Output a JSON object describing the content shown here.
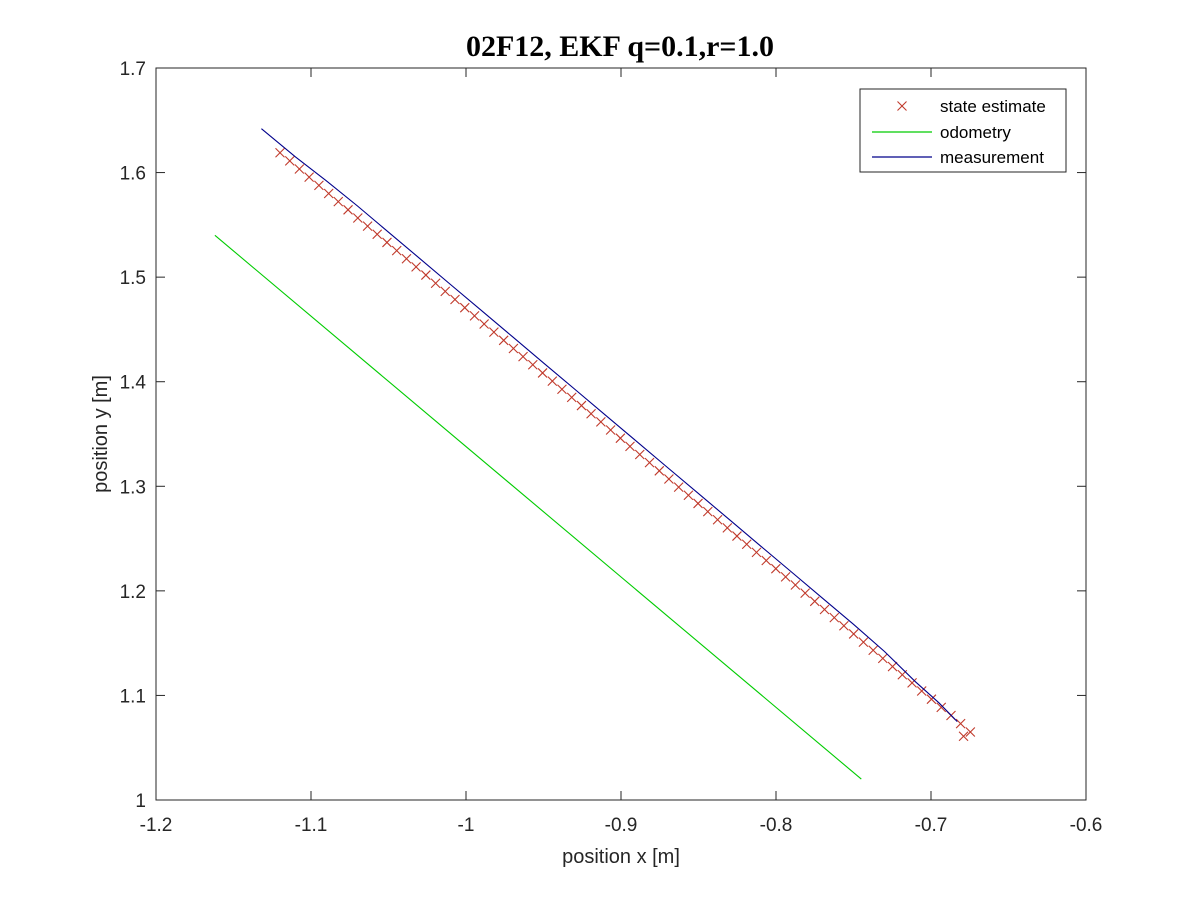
{
  "chart_data": {
    "type": "line",
    "title": "02F12, EKF q=0.1,r=1.0",
    "xlabel": "position x [m]",
    "ylabel": "position y [m]",
    "xlim": [
      -1.2,
      -0.6
    ],
    "ylim": [
      1.0,
      1.7
    ],
    "xticks": [
      -1.2,
      -1.1,
      -1.0,
      -0.9,
      -0.8,
      -0.7,
      -0.6
    ],
    "xtick_labels": [
      "-1.2",
      "-1.1",
      "-1",
      "-0.9",
      "-0.8",
      "-0.7",
      "-0.6"
    ],
    "yticks": [
      1.0,
      1.1,
      1.2,
      1.3,
      1.4,
      1.5,
      1.6,
      1.7
    ],
    "ytick_labels": [
      "1",
      "1.1",
      "1.2",
      "1.3",
      "1.4",
      "1.5",
      "1.6",
      "1.7"
    ],
    "grid": false,
    "legend_position": "top-right",
    "series": [
      {
        "name": "state estimate",
        "style": "marker-x",
        "color": "#c0392b",
        "points": [
          [
            -1.12,
            1.619
          ],
          [
            -1.1137,
            1.6112
          ],
          [
            -1.1075,
            1.6034
          ],
          [
            -1.1012,
            1.5956
          ],
          [
            -1.0949,
            1.5878
          ],
          [
            -1.0886,
            1.58
          ],
          [
            -1.0824,
            1.5722
          ],
          [
            -1.0761,
            1.5644
          ],
          [
            -1.0698,
            1.5566
          ],
          [
            -1.0635,
            1.5488
          ],
          [
            -1.0573,
            1.541
          ],
          [
            -1.051,
            1.5332
          ],
          [
            -1.0447,
            1.5254
          ],
          [
            -1.0384,
            1.5176
          ],
          [
            -1.0322,
            1.5098
          ],
          [
            -1.0259,
            1.502
          ],
          [
            -1.0196,
            1.4942
          ],
          [
            -1.0134,
            1.4864
          ],
          [
            -1.0071,
            1.4786
          ],
          [
            -1.0008,
            1.4708
          ],
          [
            -0.9945,
            1.463
          ],
          [
            -0.9883,
            1.4552
          ],
          [
            -0.982,
            1.4474
          ],
          [
            -0.9757,
            1.4396
          ],
          [
            -0.9694,
            1.4318
          ],
          [
            -0.9632,
            1.424
          ],
          [
            -0.9569,
            1.4162
          ],
          [
            -0.9506,
            1.4084
          ],
          [
            -0.9443,
            1.4006
          ],
          [
            -0.9381,
            1.3928
          ],
          [
            -0.9318,
            1.385
          ],
          [
            -0.9255,
            1.3772
          ],
          [
            -0.9193,
            1.3694
          ],
          [
            -0.913,
            1.3616
          ],
          [
            -0.9067,
            1.3538
          ],
          [
            -0.9004,
            1.346
          ],
          [
            -0.8942,
            1.3382
          ],
          [
            -0.8879,
            1.3304
          ],
          [
            -0.8816,
            1.3226
          ],
          [
            -0.8753,
            1.3148
          ],
          [
            -0.8691,
            1.307
          ],
          [
            -0.8628,
            1.2992
          ],
          [
            -0.8565,
            1.2914
          ],
          [
            -0.8503,
            1.2836
          ],
          [
            -0.844,
            1.2758
          ],
          [
            -0.8377,
            1.268
          ],
          [
            -0.8314,
            1.2602
          ],
          [
            -0.8252,
            1.2524
          ],
          [
            -0.8189,
            1.2446
          ],
          [
            -0.8126,
            1.2368
          ],
          [
            -0.8063,
            1.229
          ],
          [
            -0.8001,
            1.2212
          ],
          [
            -0.7938,
            1.2134
          ],
          [
            -0.7875,
            1.2056
          ],
          [
            -0.7812,
            1.1978
          ],
          [
            -0.775,
            1.19
          ],
          [
            -0.7687,
            1.1822
          ],
          [
            -0.7624,
            1.1744
          ],
          [
            -0.7562,
            1.1666
          ],
          [
            -0.7499,
            1.1588
          ],
          [
            -0.7436,
            1.151
          ],
          [
            -0.7373,
            1.1432
          ],
          [
            -0.7311,
            1.1354
          ],
          [
            -0.7248,
            1.1276
          ],
          [
            -0.7185,
            1.1198
          ],
          [
            -0.7122,
            1.112
          ],
          [
            -0.706,
            1.1042
          ],
          [
            -0.6997,
            1.0964
          ],
          [
            -0.6934,
            1.0886
          ],
          [
            -0.6871,
            1.0808
          ],
          [
            -0.6809,
            1.073
          ],
          [
            -0.6746,
            1.065
          ],
          [
            -0.679,
            1.061
          ]
        ]
      },
      {
        "name": "odometry",
        "style": "line",
        "color": "#00cc00",
        "points": [
          [
            -1.162,
            1.54
          ],
          [
            -0.745,
            1.02
          ]
        ]
      },
      {
        "name": "measurement",
        "style": "line",
        "color": "#00008b",
        "points": [
          [
            -1.132,
            1.642
          ],
          [
            -1.11,
            1.615
          ],
          [
            -1.09,
            1.592
          ],
          [
            -1.07,
            1.568
          ],
          [
            -1.05,
            1.543
          ],
          [
            -1.03,
            1.518
          ],
          [
            -1.01,
            1.493
          ],
          [
            -0.99,
            1.468
          ],
          [
            -0.97,
            1.443
          ],
          [
            -0.95,
            1.418
          ],
          [
            -0.93,
            1.393
          ],
          [
            -0.91,
            1.368
          ],
          [
            -0.89,
            1.343
          ],
          [
            -0.87,
            1.318
          ],
          [
            -0.85,
            1.293
          ],
          [
            -0.83,
            1.268
          ],
          [
            -0.81,
            1.243
          ],
          [
            -0.79,
            1.218
          ],
          [
            -0.77,
            1.193
          ],
          [
            -0.75,
            1.168
          ],
          [
            -0.73,
            1.142
          ],
          [
            -0.71,
            1.113
          ],
          [
            -0.695,
            1.093
          ],
          [
            -0.683,
            1.075
          ]
        ]
      }
    ]
  }
}
